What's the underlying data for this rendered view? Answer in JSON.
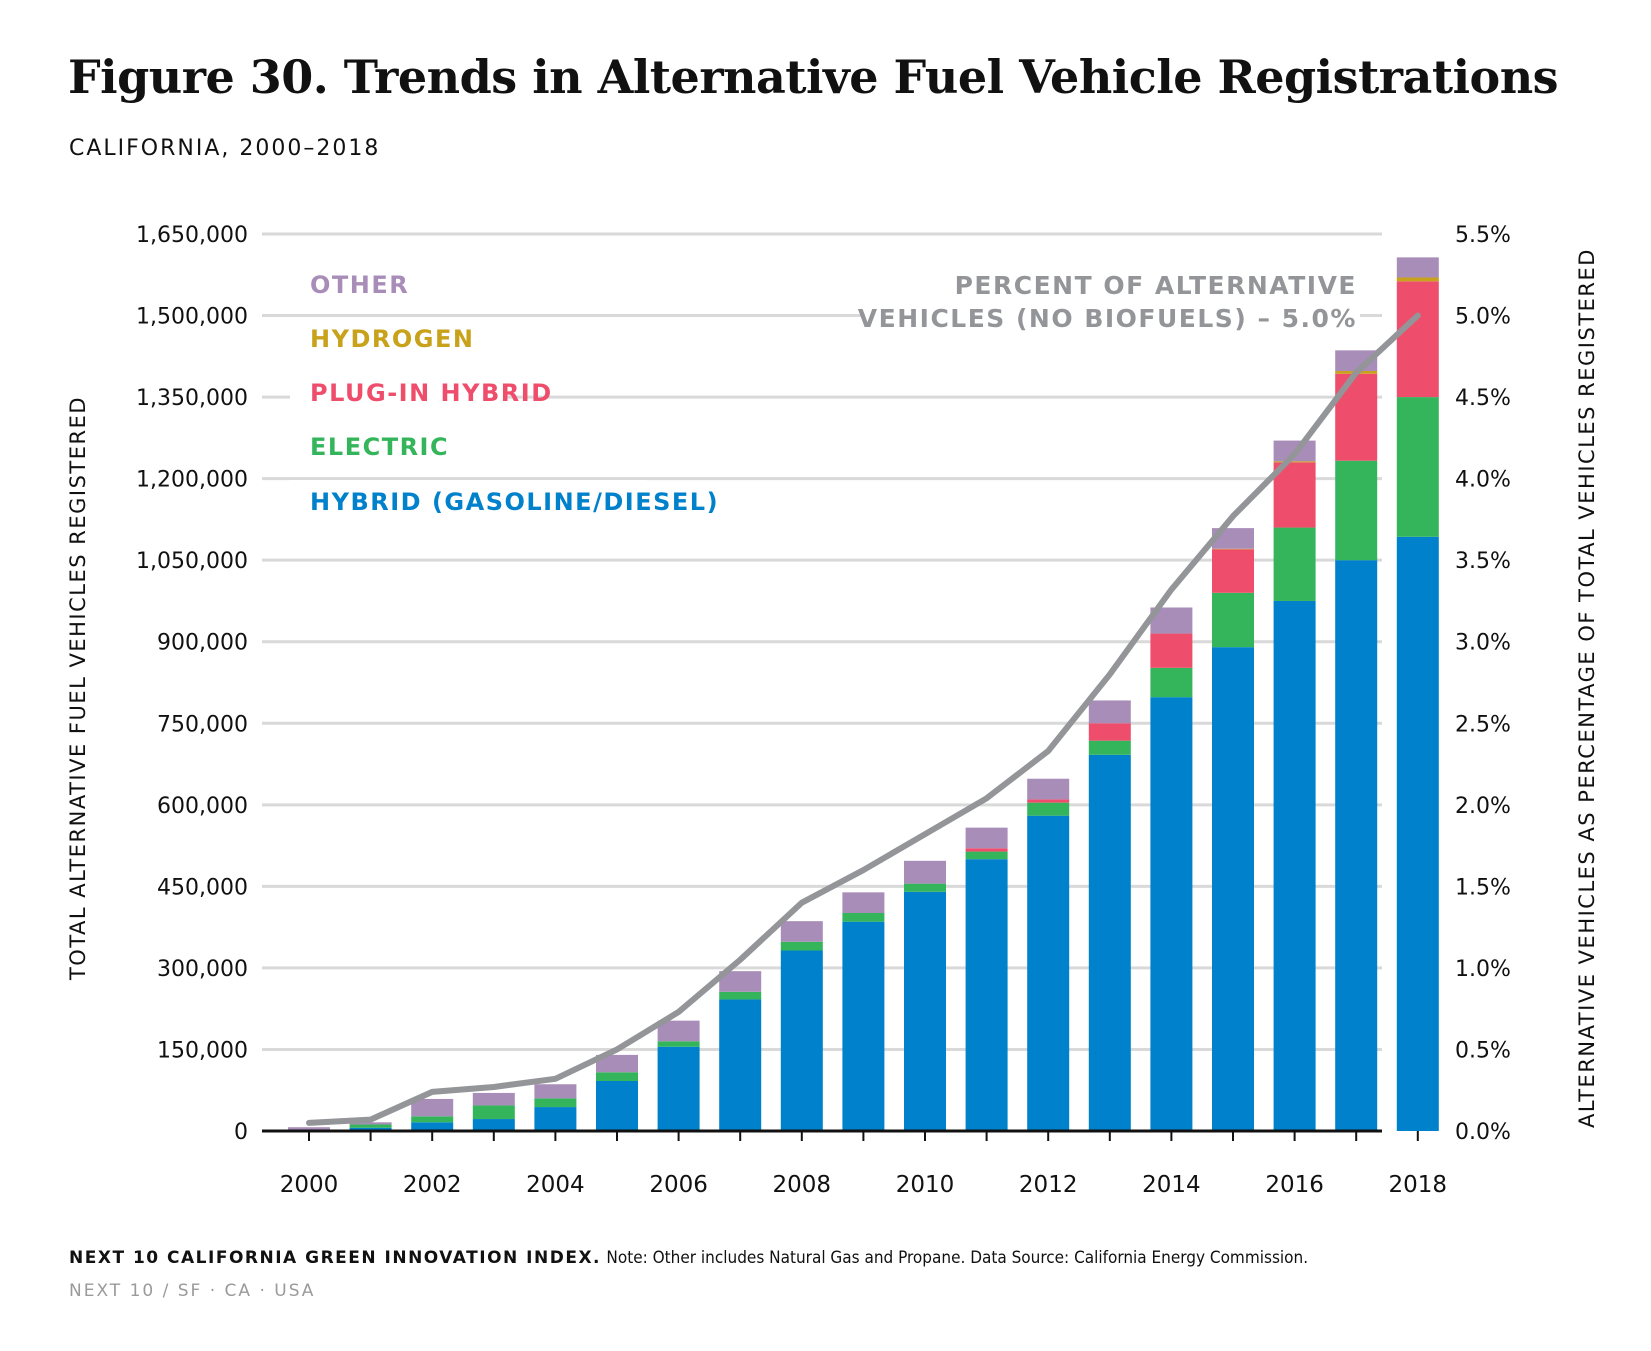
{
  "title": "Figure 30. Trends in Alternative Fuel Vehicle Registrations",
  "subtitle": "CALIFORNIA, 2000–2018",
  "footer": {
    "org": "NEXT 10 CALIFORNIA GREEN INNOVATION INDEX.",
    "note": "Note: Other includes Natural Gas and Propane. Data Source: California Energy Commission.",
    "location": "NEXT 10  /  SF · CA · USA"
  },
  "chart_data": {
    "type": "bar",
    "stacked": true,
    "categories": [
      "2000",
      "2001",
      "2002",
      "2003",
      "2004",
      "2005",
      "2006",
      "2007",
      "2008",
      "2009",
      "2010",
      "2011",
      "2012",
      "2013",
      "2014",
      "2015",
      "2016",
      "2017",
      "2018"
    ],
    "x_tick_labels": [
      "2000",
      "2002",
      "2004",
      "2006",
      "2008",
      "2010",
      "2012",
      "2014",
      "2016",
      "2018"
    ],
    "ylabel": "TOTAL ALTERNATIVE FUEL VEHICLES REGISTERED",
    "ylabel_right": "ALTERNATIVE VEHICLES AS PERCENTAGE OF TOTAL VEHICLES REGISTERED",
    "ylim": [
      0,
      1650000
    ],
    "ylim_right": [
      0,
      5.5
    ],
    "y_ticks": [
      "0",
      "150,000",
      "300,000",
      "450,000",
      "600,000",
      "750,000",
      "900,000",
      "1,050,000",
      "1,200,000",
      "1,350,000",
      "1,500,000",
      "1,650,000"
    ],
    "y_ticks_right": [
      "0.0%",
      "0.5%",
      "1.0%",
      "1.5%",
      "2.0%",
      "2.5%",
      "3.0%",
      "3.5%",
      "4.0%",
      "4.5%",
      "5.0%",
      "5.5%"
    ],
    "grid": true,
    "legend_position": "top-left",
    "series": [
      {
        "name": "HYBRID (GASOLINE/DIESEL)",
        "color": "#0081CB",
        "values": [
          1000,
          6000,
          16000,
          22000,
          44000,
          92000,
          155000,
          242000,
          332000,
          385000,
          440000,
          500000,
          580000,
          692000,
          798000,
          890000,
          975000,
          1050000,
          1093000
        ]
      },
      {
        "name": "ELECTRIC",
        "color": "#34B55B",
        "values": [
          1500,
          6000,
          11000,
          25000,
          16000,
          16000,
          10000,
          14000,
          16000,
          16000,
          15000,
          14000,
          24000,
          26000,
          54000,
          100000,
          135000,
          183000,
          257000
        ]
      },
      {
        "name": "PLUG-IN HYBRID",
        "color": "#EE4E6B",
        "values": [
          0,
          0,
          0,
          0,
          0,
          0,
          0,
          0,
          0,
          0,
          0,
          6000,
          6000,
          32000,
          63000,
          80000,
          120000,
          160000,
          213000
        ]
      },
      {
        "name": "HYDROGEN",
        "color": "#C9A21B",
        "values": [
          0,
          0,
          0,
          0,
          0,
          0,
          0,
          0,
          0,
          0,
          0,
          0,
          0,
          0,
          0,
          1000,
          2000,
          5000,
          7000
        ]
      },
      {
        "name": "OTHER",
        "color": "#A88DB8",
        "values": [
          4500,
          4000,
          32000,
          23000,
          26000,
          32000,
          38000,
          38000,
          38000,
          38000,
          42000,
          38000,
          38000,
          42000,
          48000,
          38000,
          38000,
          38000,
          37000
        ]
      }
    ],
    "line_series": {
      "name": "PERCENT OF ALTERNATIVE VEHICLES (NO BIOFUELS) – 5.0%",
      "label_lines": [
        "PERCENT OF ALTERNATIVE",
        "VEHICLES (NO BIOFUELS) – 5.0%"
      ],
      "color": "#939598",
      "axis": "right",
      "values": [
        0.05,
        0.07,
        0.24,
        0.27,
        0.32,
        0.5,
        0.73,
        1.05,
        1.4,
        1.6,
        1.82,
        2.04,
        2.33,
        2.8,
        3.32,
        3.77,
        4.15,
        4.65,
        5.0
      ]
    }
  }
}
